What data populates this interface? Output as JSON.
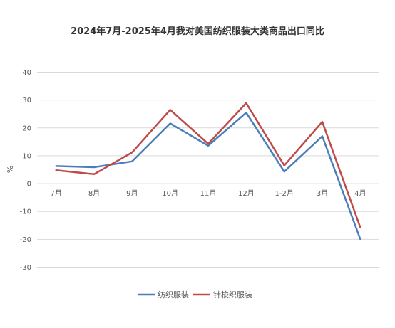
{
  "chart_data": {
    "type": "line",
    "title": "2024年7月-2025年4月我对美国纺织服装大类商品出口同比",
    "ylabel": "%",
    "xlabel": "",
    "categories": [
      "7月",
      "8月",
      "9月",
      "10月",
      "11月",
      "12月",
      "1-2月",
      "3月",
      "4月"
    ],
    "ylim": [
      -30,
      40
    ],
    "yticks": [
      40,
      30,
      20,
      10,
      0,
      -10,
      -20,
      -30
    ],
    "grid": true,
    "legend_position": "bottom",
    "series": [
      {
        "name": "纺织服装",
        "color": "#4a7ebb",
        "values": [
          6.3,
          5.9,
          8.0,
          21.6,
          13.6,
          25.5,
          4.3,
          17.0,
          -19.9
        ]
      },
      {
        "name": "针梭织服装",
        "color": "#be4b48",
        "values": [
          4.8,
          3.4,
          11.2,
          26.5,
          14.3,
          28.9,
          6.5,
          22.2,
          -15.7
        ]
      }
    ]
  }
}
